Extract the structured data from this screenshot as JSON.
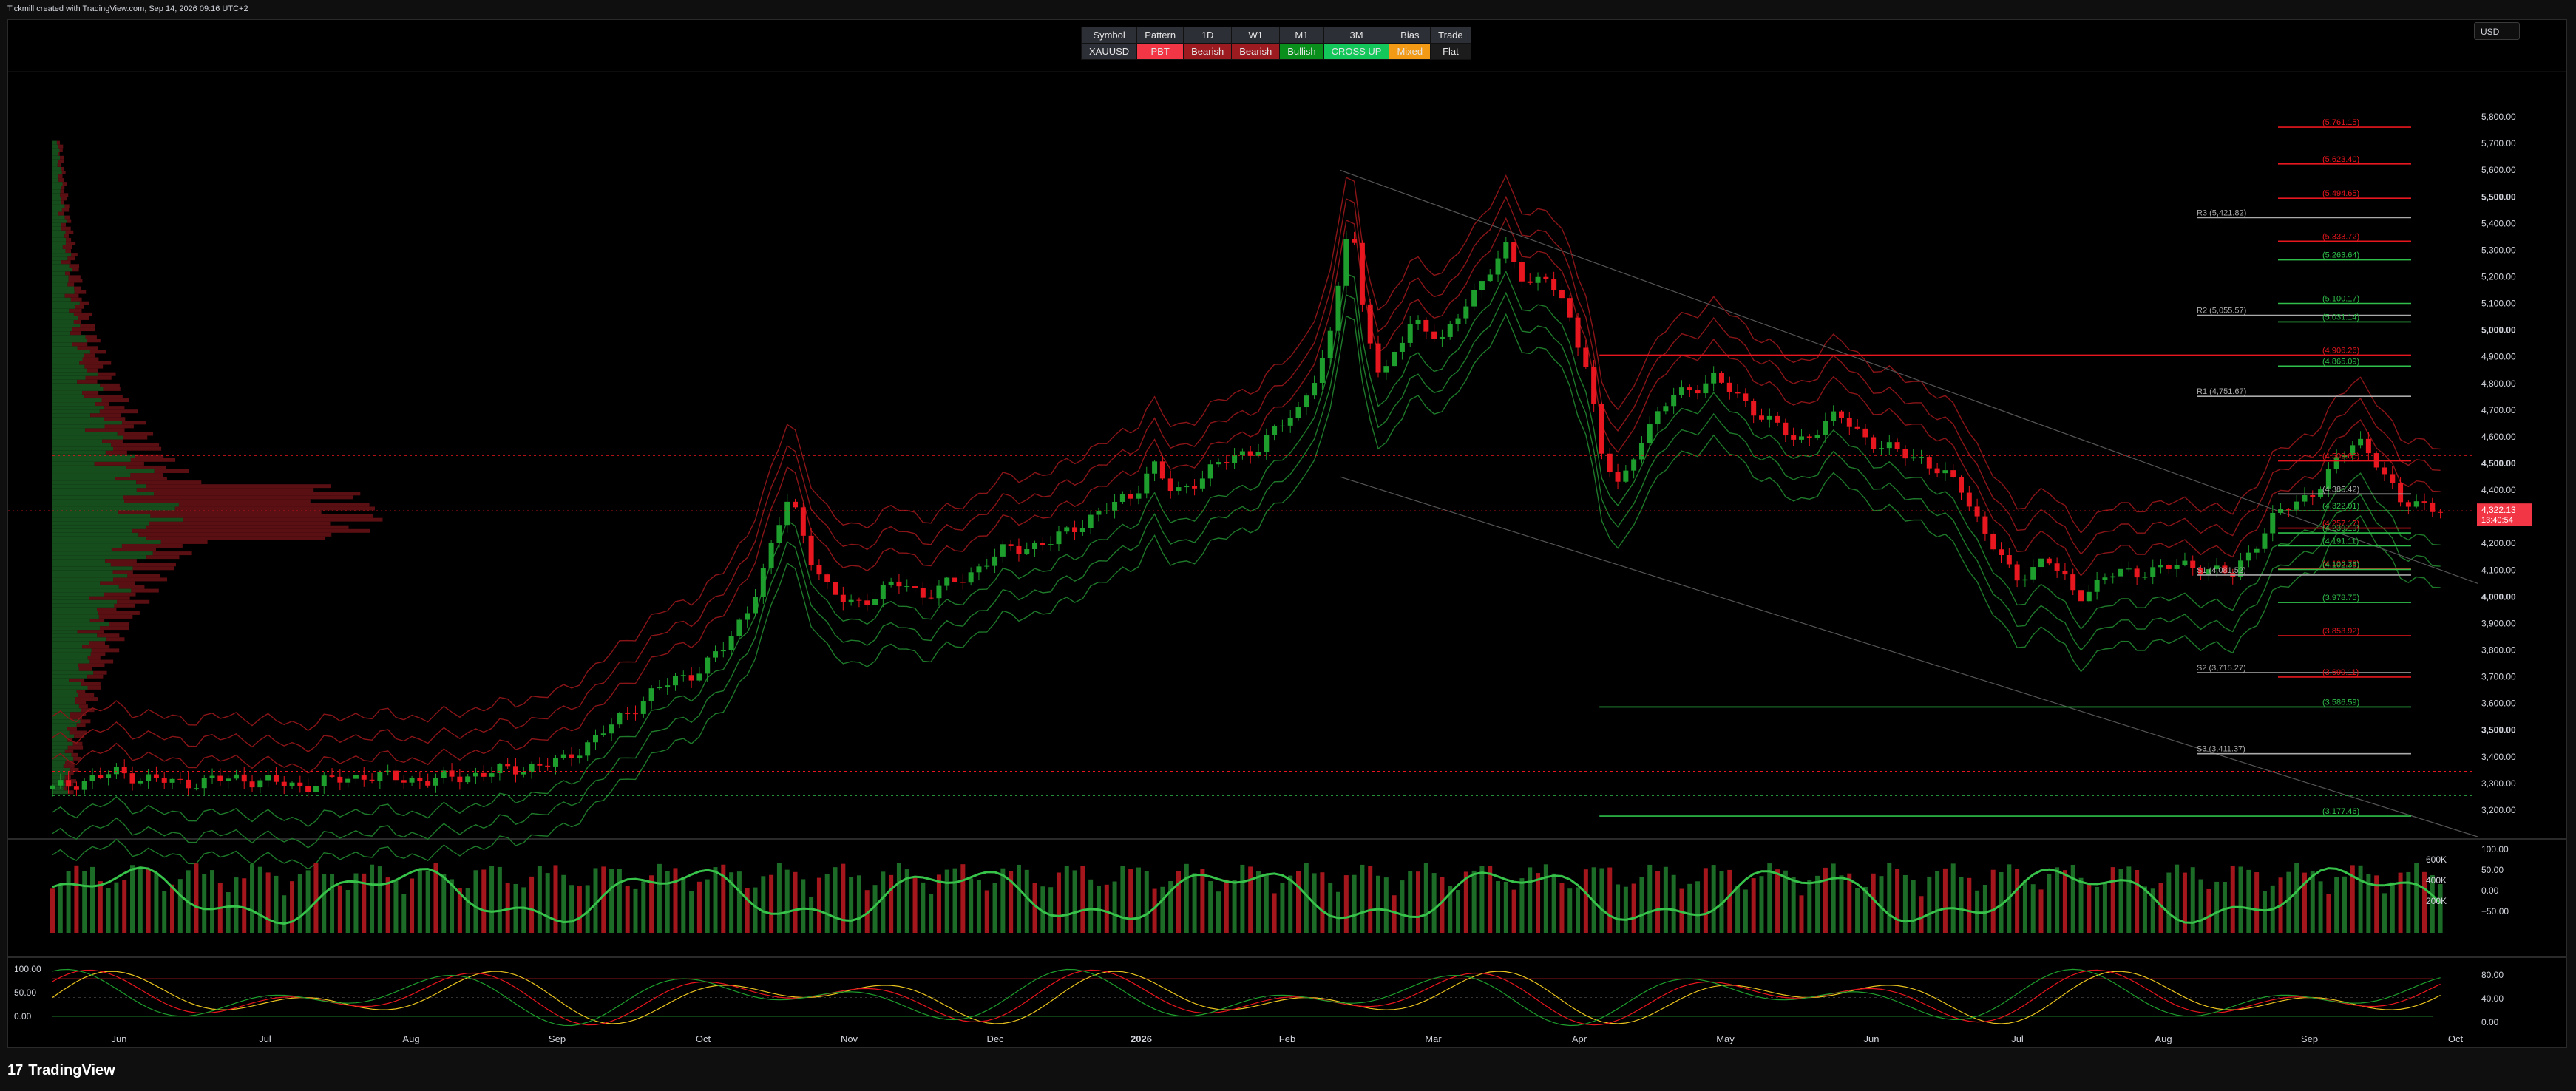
{
  "header": {
    "watermark": "Tickmill created with TradingView.com, Sep 14, 2026 09:16 UTC+2"
  },
  "footer": {
    "brand": "TradingView",
    "logo_glyph": "17"
  },
  "currency_button": {
    "label": "USD"
  },
  "bias_table": {
    "headers": [
      "Symbol",
      "Pattern",
      "1D",
      "W1",
      "M1",
      "3M",
      "Bias",
      "Trade"
    ],
    "values": [
      {
        "text": "XAUUSD",
        "bg": "#2d2f36"
      },
      {
        "text": "PBT",
        "bg": "#f23645"
      },
      {
        "text": "Bearish",
        "bg": "#9b1b21"
      },
      {
        "text": "Bearish",
        "bg": "#9b1b21"
      },
      {
        "text": "Bullish",
        "bg": "#0a8f1c"
      },
      {
        "text": "CROSS UP",
        "bg": "#14c75a"
      },
      {
        "text": "Mixed",
        "bg": "#f29a16"
      },
      {
        "text": "Flat",
        "bg": "#1c1c1c"
      }
    ]
  },
  "colors": {
    "bull": "#1e9e2d",
    "bear": "#e8161e",
    "green_line": "#2fbf4a",
    "red_line": "#e8161e",
    "price_tag": "#f23645"
  },
  "chart_data": [
    {
      "type": "candlestick",
      "symbol": "XAUUSD",
      "ylim": [
        3100,
        5900
      ],
      "x_ticks": [
        "Jun",
        "Jul",
        "Aug",
        "Sep",
        "Oct",
        "Nov",
        "Dec",
        "2026",
        "Feb",
        "Mar",
        "Apr",
        "May",
        "Jun",
        "Jul",
        "Aug",
        "Sep",
        "Oct"
      ],
      "y_ticks": [
        {
          "v": 5800,
          "t": "5,800.00"
        },
        {
          "v": 5700,
          "t": "5,700.00"
        },
        {
          "v": 5600,
          "t": "5,600.00"
        },
        {
          "v": 5500,
          "t": "5,500.00",
          "b": true
        },
        {
          "v": 5400,
          "t": "5,400.00"
        },
        {
          "v": 5300,
          "t": "5,300.00"
        },
        {
          "v": 5200,
          "t": "5,200.00"
        },
        {
          "v": 5100,
          "t": "5,100.00"
        },
        {
          "v": 5000,
          "t": "5,000.00",
          "b": true
        },
        {
          "v": 4900,
          "t": "4,900.00"
        },
        {
          "v": 4800,
          "t": "4,800.00"
        },
        {
          "v": 4700,
          "t": "4,700.00"
        },
        {
          "v": 4600,
          "t": "4,600.00"
        },
        {
          "v": 4500,
          "t": "4,500.00",
          "b": true
        },
        {
          "v": 4400,
          "t": "4,400.00"
        },
        {
          "v": 4200,
          "t": "4,200.00"
        },
        {
          "v": 4100,
          "t": "4,100.00"
        },
        {
          "v": 4000,
          "t": "4,000.00",
          "b": true
        },
        {
          "v": 3900,
          "t": "3,900.00"
        },
        {
          "v": 3800,
          "t": "3,800.00"
        },
        {
          "v": 3700,
          "t": "3,700.00"
        },
        {
          "v": 3600,
          "t": "3,600.00"
        },
        {
          "v": 3500,
          "t": "3,500.00",
          "b": true
        },
        {
          "v": 3400,
          "t": "3,400.00"
        },
        {
          "v": 3300,
          "t": "3,300.00"
        },
        {
          "v": 3200,
          "t": "3,200.00"
        }
      ],
      "price_path": [
        [
          0.0,
          3280
        ],
        [
          0.03,
          3340
        ],
        [
          0.06,
          3300
        ],
        [
          0.09,
          3320
        ],
        [
          0.12,
          3290
        ],
        [
          0.15,
          3330
        ],
        [
          0.18,
          3310
        ],
        [
          0.21,
          3340
        ],
        [
          0.245,
          3380
        ],
        [
          0.27,
          3520
        ],
        [
          0.29,
          3650
        ],
        [
          0.31,
          3720
        ],
        [
          0.325,
          3820
        ],
        [
          0.335,
          3960
        ],
        [
          0.345,
          4150
        ],
        [
          0.355,
          4390
        ],
        [
          0.365,
          4150
        ],
        [
          0.375,
          4000
        ],
        [
          0.39,
          3980
        ],
        [
          0.41,
          4060
        ],
        [
          0.42,
          4000
        ],
        [
          0.44,
          4080
        ],
        [
          0.46,
          4180
        ],
        [
          0.48,
          4200
        ],
        [
          0.5,
          4300
        ],
        [
          0.52,
          4380
        ],
        [
          0.53,
          4500
        ],
        [
          0.54,
          4380
        ],
        [
          0.56,
          4490
        ],
        [
          0.58,
          4560
        ],
        [
          0.6,
          4700
        ],
        [
          0.615,
          4950
        ],
        [
          0.625,
          5450
        ],
        [
          0.63,
          5120
        ],
        [
          0.64,
          4800
        ],
        [
          0.655,
          5050
        ],
        [
          0.67,
          4950
        ],
        [
          0.68,
          5100
        ],
        [
          0.69,
          5200
        ],
        [
          0.7,
          5300
        ],
        [
          0.71,
          5180
        ],
        [
          0.72,
          5200
        ],
        [
          0.73,
          5050
        ],
        [
          0.74,
          4850
        ],
        [
          0.745,
          4550
        ],
        [
          0.755,
          4400
        ],
        [
          0.765,
          4600
        ],
        [
          0.78,
          4750
        ],
        [
          0.8,
          4820
        ],
        [
          0.82,
          4700
        ],
        [
          0.84,
          4580
        ],
        [
          0.86,
          4680
        ],
        [
          0.88,
          4560
        ],
        [
          0.9,
          4520
        ],
        [
          0.92,
          4400
        ],
        [
          0.93,
          4250
        ],
        [
          0.945,
          4060
        ],
        [
          0.96,
          4150
        ],
        [
          0.975,
          4000
        ],
        [
          0.99,
          4080
        ],
        [
          1.01,
          4100
        ],
        [
          1.03,
          4120
        ],
        [
          1.05,
          4080
        ],
        [
          1.07,
          4300
        ],
        [
          1.09,
          4400
        ],
        [
          1.11,
          4600
        ],
        [
          1.12,
          4500
        ],
        [
          1.13,
          4350
        ],
        [
          1.14,
          4360
        ],
        [
          1.15,
          4320
        ]
      ],
      "horizontal_levels": [
        {
          "label": "(5,761.15)",
          "value": 5761.15,
          "color": "red"
        },
        {
          "label": "(5,623.40)",
          "value": 5623.4,
          "color": "red"
        },
        {
          "label": "(5,494.65)",
          "value": 5494.65,
          "color": "red"
        },
        {
          "label": "R3 (5,421.82)",
          "value": 5421.82,
          "color": "gray"
        },
        {
          "label": "(5,333.72)",
          "value": 5333.72,
          "color": "red"
        },
        {
          "label": "(5,263.64)",
          "value": 5263.64,
          "color": "green"
        },
        {
          "label": "(5,100.17)",
          "value": 5100.17,
          "color": "green"
        },
        {
          "label": "R2 (5,055.57)",
          "value": 5055.57,
          "color": "gray"
        },
        {
          "label": "(5,031.14)",
          "value": 5031.14,
          "color": "green"
        },
        {
          "label": "(4,906.26)",
          "value": 4906.26,
          "color": "red"
        },
        {
          "label": "(4,865.09)",
          "value": 4865.09,
          "color": "green"
        },
        {
          "label": "R1 (4,751.67)",
          "value": 4751.67,
          "color": "gray"
        },
        {
          "label": "(4,509.65)",
          "value": 4509.65,
          "color": "red"
        },
        {
          "label": "(4,385.42)",
          "value": 4385.42,
          "color": "gray"
        },
        {
          "label": "(4,322.01)",
          "value": 4322.01,
          "color": "green"
        },
        {
          "label": "(4,257.17)",
          "value": 4257.17,
          "color": "red"
        },
        {
          "label": "(4,239.19)",
          "value": 4239.19,
          "color": "green"
        },
        {
          "label": "(4,191.11)",
          "value": 4191.11,
          "color": "green"
        },
        {
          "label": "(4,106.78)",
          "value": 4106.78,
          "color": "red"
        },
        {
          "label": "(4,102.35)",
          "value": 4102.35,
          "color": "green"
        },
        {
          "label": "S1 (4,081.52)",
          "value": 4081.52,
          "color": "gray"
        },
        {
          "label": "(3,978.75)",
          "value": 3978.75,
          "color": "green"
        },
        {
          "label": "(3,853.92)",
          "value": 3853.92,
          "color": "red"
        },
        {
          "label": "S2 (3,715.27)",
          "value": 3715.27,
          "color": "gray"
        },
        {
          "label": "(3,699.11)",
          "value": 3699.11,
          "color": "red"
        },
        {
          "label": "(3,586.59)",
          "value": 3586.59,
          "color": "green"
        },
        {
          "label": "S3 (3,411.37)",
          "value": 3411.37,
          "color": "gray"
        },
        {
          "label": "(3,177.46)",
          "value": 3177.46,
          "color": "green"
        }
      ],
      "current_price": {
        "price": "4,322.13",
        "countdown": "13:40:54",
        "value": 4322.13
      }
    },
    {
      "type": "bar",
      "name": "volume",
      "ylim_volume": [
        0,
        700000
      ],
      "y_ticks_left": [
        "600K",
        "400K",
        "200K"
      ],
      "y_ticks_right": [
        "100.00",
        "50.00",
        "0.00",
        "−50.00"
      ]
    },
    {
      "type": "line",
      "name": "stochastic",
      "ylim": [
        0,
        100
      ],
      "y_ticks_left": [
        "100.00",
        "50.00",
        "0.00"
      ],
      "y_ticks_right": [
        "80.00",
        "40.00",
        "0.00"
      ]
    }
  ]
}
